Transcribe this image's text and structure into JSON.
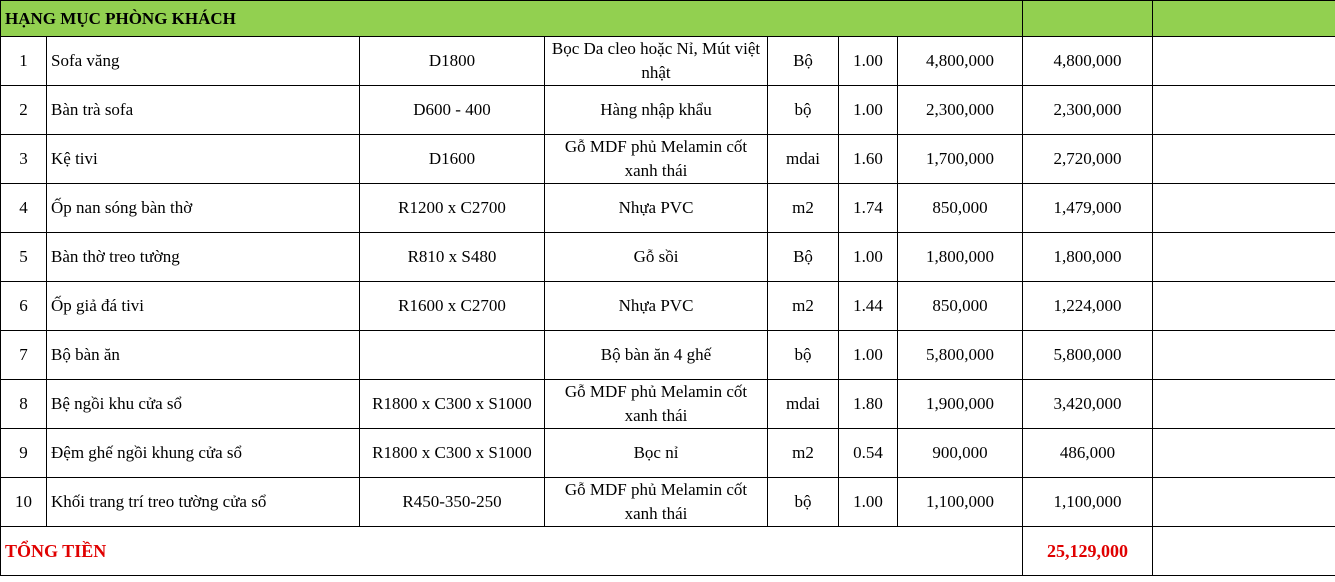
{
  "section_title": "HẠNG MỤC PHÒNG KHÁCH",
  "rows": [
    {
      "no": "1",
      "name": "Sofa văng",
      "size": "D1800",
      "material": "Bọc Da cleo hoặc Nỉ, Mút việt nhật",
      "unit": "Bộ",
      "qty": "1.00",
      "price": "4,800,000",
      "amount": "4,800,000"
    },
    {
      "no": "2",
      "name": "Bàn trà sofa",
      "size": "D600 - 400",
      "material": "Hàng nhập khẩu",
      "unit": "bộ",
      "qty": "1.00",
      "price": "2,300,000",
      "amount": "2,300,000"
    },
    {
      "no": "3",
      "name": "Kệ tivi",
      "size": "D1600",
      "material": "Gỗ MDF phủ Melamin cốt xanh thái",
      "unit": "mdai",
      "qty": "1.60",
      "price": "1,700,000",
      "amount": "2,720,000"
    },
    {
      "no": "4",
      "name": "Ốp nan sóng bàn thờ",
      "size": "R1200 x C2700",
      "material": "Nhựa PVC",
      "unit": "m2",
      "qty": "1.74",
      "price": "850,000",
      "amount": "1,479,000"
    },
    {
      "no": "5",
      "name": "Bàn thờ treo tường",
      "size": "R810 x S480",
      "material": "Gỗ sồi",
      "unit": "Bộ",
      "qty": "1.00",
      "price": "1,800,000",
      "amount": "1,800,000"
    },
    {
      "no": "6",
      "name": "Ốp giả đá tivi",
      "size": "R1600 x C2700",
      "material": "Nhựa PVC",
      "unit": "m2",
      "qty": "1.44",
      "price": "850,000",
      "amount": "1,224,000"
    },
    {
      "no": "7",
      "name": "Bộ bàn ăn",
      "size": "",
      "material": "Bộ bàn ăn 4 ghế",
      "unit": "bộ",
      "qty": "1.00",
      "price": "5,800,000",
      "amount": "5,800,000"
    },
    {
      "no": "8",
      "name": "Bệ ngồi khu cửa sổ",
      "size": "R1800 x C300 x S1000",
      "material": "Gỗ MDF phủ Melamin cốt xanh thái",
      "unit": "mdai",
      "qty": "1.80",
      "price": "1,900,000",
      "amount": "3,420,000"
    },
    {
      "no": "9",
      "name": "Đệm ghế ngồi khung cửa sổ",
      "size": "R1800 x C300 x S1000",
      "material": "Bọc nỉ",
      "unit": "m2",
      "qty": "0.54",
      "price": "900,000",
      "amount": "486,000"
    },
    {
      "no": "10",
      "name": "Khối trang trí treo tường cửa sổ",
      "size": "R450-350-250",
      "material": "Gỗ MDF phủ Melamin cốt xanh thái",
      "unit": "bộ",
      "qty": "1.00",
      "price": "1,100,000",
      "amount": "1,100,000"
    }
  ],
  "total_label": "TỔNG TIỀN",
  "total_amount": "25,129,000",
  "colors": {
    "header_bg": "#92d050",
    "total_text": "#e00000"
  }
}
